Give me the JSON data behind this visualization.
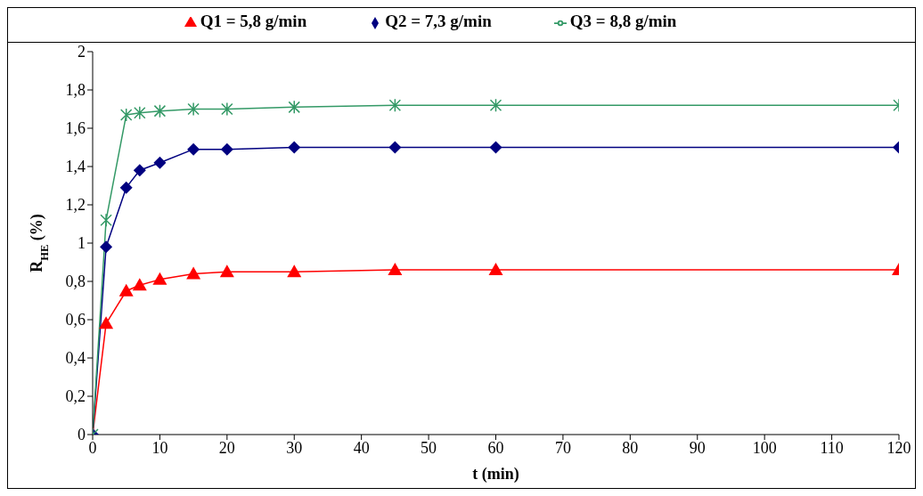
{
  "chart_data": {
    "type": "line",
    "xlabel": "t (min)",
    "ylabel": "R$_{HE}$ (%)",
    "x": [
      0,
      2,
      5,
      7,
      10,
      15,
      20,
      30,
      45,
      60,
      120
    ],
    "series": [
      {
        "name": "Q1 = 5,8 g/min",
        "color": "#ff0000",
        "marker": "triangle",
        "values": [
          0,
          0.58,
          0.75,
          0.78,
          0.81,
          0.84,
          0.85,
          0.85,
          0.86,
          0.86,
          0.86
        ]
      },
      {
        "name": "Q2 = 7,3 g/min",
        "color": "#000080",
        "marker": "diamond",
        "values": [
          0,
          0.98,
          1.29,
          1.38,
          1.42,
          1.49,
          1.49,
          1.5,
          1.5,
          1.5,
          1.5
        ]
      },
      {
        "name": "Q3 = 8,8 g/min",
        "color": "#339966",
        "marker": "cross",
        "values": [
          0,
          1.12,
          1.67,
          1.68,
          1.69,
          1.7,
          1.7,
          1.71,
          1.72,
          1.72,
          1.72
        ]
      }
    ],
    "xlim": [
      0,
      120
    ],
    "xticks": [
      0,
      10,
      20,
      30,
      40,
      50,
      60,
      70,
      80,
      90,
      100,
      110,
      120
    ],
    "ylim": [
      0,
      2
    ],
    "yticks": [
      0,
      {
        "value": 0.2,
        "label": "0,2"
      },
      {
        "value": 0.4,
        "label": "0,4"
      },
      {
        "value": 0.6,
        "label": "0,6"
      },
      {
        "value": 0.8,
        "label": "0,8"
      },
      1,
      {
        "value": 1.2,
        "label": "1,2"
      },
      {
        "value": 1.4,
        "label": "1,4"
      },
      {
        "value": 1.6,
        "label": "1,6"
      },
      {
        "value": 1.8,
        "label": "1,8"
      },
      2
    ],
    "grid": false,
    "legend": "top",
    "line_style": "solid"
  }
}
